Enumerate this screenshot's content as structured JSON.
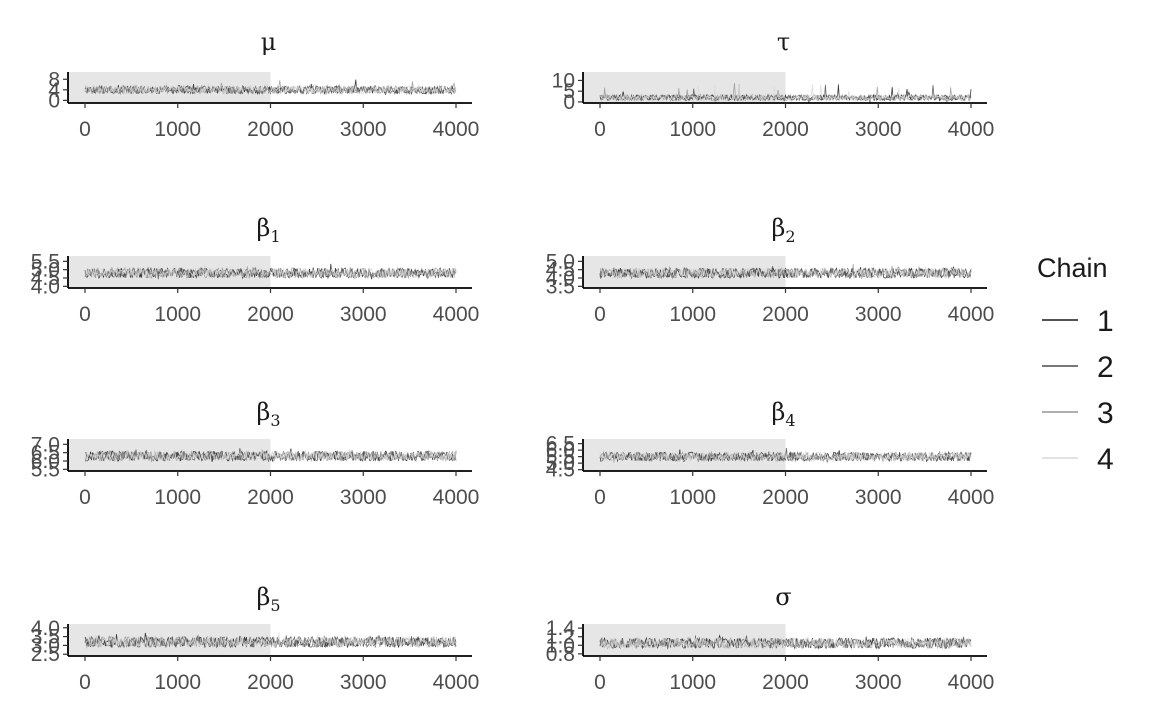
{
  "legend": {
    "title": "Chain",
    "items": [
      {
        "label": "1",
        "color": "#1a1a1a"
      },
      {
        "label": "2",
        "color": "#4d4d4d"
      },
      {
        "label": "3",
        "color": "#969696"
      },
      {
        "label": "4",
        "color": "#d9d9d9"
      }
    ]
  },
  "colors": {
    "warmup_shade": "#e6e6e6",
    "axis": "#000000",
    "background": "#ffffff"
  },
  "chart_data": [
    {
      "type": "line",
      "title": "μ",
      "xlabel": "",
      "ylabel": "",
      "xlim": [
        0,
        4000
      ],
      "ylim": [
        -1,
        10
      ],
      "warmup_end": 2000,
      "xticks": [
        0,
        1000,
        2000,
        3000,
        4000
      ],
      "yticks": [
        0,
        4,
        8
      ],
      "series_center": 4,
      "series_spread": 1.5,
      "spike_amp": 4,
      "series": [
        {
          "name": "1"
        },
        {
          "name": "2"
        },
        {
          "name": "3"
        },
        {
          "name": "4"
        }
      ]
    },
    {
      "type": "line",
      "title": "τ",
      "xlabel": "",
      "ylabel": "",
      "xlim": [
        0,
        4000
      ],
      "ylim": [
        -0.5,
        13
      ],
      "warmup_end": 2000,
      "xticks": [
        0,
        1000,
        2000,
        3000,
        4000
      ],
      "yticks": [
        0,
        5,
        10
      ],
      "series_center": 2,
      "series_spread": 1.3,
      "spike_amp": 9,
      "series": [
        {
          "name": "1"
        },
        {
          "name": "2"
        },
        {
          "name": "3"
        },
        {
          "name": "4"
        }
      ]
    },
    {
      "type": "line",
      "title": "β",
      "subscript": "1",
      "xlabel": "",
      "ylabel": "",
      "xlim": [
        0,
        4000
      ],
      "ylim": [
        3.9,
        5.7
      ],
      "warmup_end": 2000,
      "xticks": [
        0,
        1000,
        2000,
        3000,
        4000
      ],
      "yticks": [
        4.0,
        4.5,
        5.0,
        5.5
      ],
      "series_center": 4.8,
      "series_spread": 0.3,
      "spike_amp": 0.4,
      "series": [
        {
          "name": "1"
        },
        {
          "name": "2"
        },
        {
          "name": "3"
        },
        {
          "name": "4"
        }
      ]
    },
    {
      "type": "line",
      "title": "β",
      "subscript": "2",
      "xlabel": "",
      "ylabel": "",
      "xlim": [
        0,
        4000
      ],
      "ylim": [
        3.4,
        5.2
      ],
      "warmup_end": 2000,
      "xticks": [
        0,
        1000,
        2000,
        3000,
        4000
      ],
      "yticks": [
        3.5,
        4.0,
        4.5,
        5.0
      ],
      "series_center": 4.3,
      "series_spread": 0.3,
      "spike_amp": 0.4,
      "series": [
        {
          "name": "1"
        },
        {
          "name": "2"
        },
        {
          "name": "3"
        },
        {
          "name": "4"
        }
      ]
    },
    {
      "type": "line",
      "title": "β",
      "subscript": "3",
      "xlabel": "",
      "ylabel": "",
      "xlim": [
        0,
        4000
      ],
      "ylim": [
        5.4,
        7.2
      ],
      "warmup_end": 2000,
      "xticks": [
        0,
        1000,
        2000,
        3000,
        4000
      ],
      "yticks": [
        5.5,
        6.0,
        6.5,
        7.0
      ],
      "series_center": 6.3,
      "series_spread": 0.3,
      "spike_amp": 0.4,
      "series": [
        {
          "name": "1"
        },
        {
          "name": "2"
        },
        {
          "name": "3"
        },
        {
          "name": "4"
        }
      ]
    },
    {
      "type": "line",
      "title": "β",
      "subscript": "4",
      "xlabel": "",
      "ylabel": "",
      "xlim": [
        0,
        4000
      ],
      "ylim": [
        4.4,
        6.7
      ],
      "warmup_end": 2000,
      "xticks": [
        0,
        1000,
        2000,
        3000,
        4000
      ],
      "yticks": [
        4.5,
        5.0,
        5.5,
        6.0,
        6.5
      ],
      "series_center": 5.5,
      "series_spread": 0.35,
      "spike_amp": 0.5,
      "series": [
        {
          "name": "1"
        },
        {
          "name": "2"
        },
        {
          "name": "3"
        },
        {
          "name": "4"
        }
      ]
    },
    {
      "type": "line",
      "title": "β",
      "subscript": "5",
      "xlabel": "",
      "ylabel": "",
      "xlim": [
        0,
        4000
      ],
      "ylim": [
        2.4,
        4.1
      ],
      "warmup_end": 2000,
      "xticks": [
        0,
        1000,
        2000,
        3000,
        4000
      ],
      "yticks": [
        2.5,
        3.0,
        3.5,
        4.0
      ],
      "series_center": 3.2,
      "series_spread": 0.3,
      "spike_amp": 0.4,
      "series": [
        {
          "name": "1"
        },
        {
          "name": "2"
        },
        {
          "name": "3"
        },
        {
          "name": "4"
        }
      ]
    },
    {
      "type": "line",
      "title": "σ",
      "xlabel": "",
      "ylabel": "",
      "xlim": [
        0,
        4000
      ],
      "ylim": [
        0.75,
        1.45
      ],
      "warmup_end": 2000,
      "xticks": [
        0,
        1000,
        2000,
        3000,
        4000
      ],
      "yticks": [
        0.8,
        1.0,
        1.2,
        1.4
      ],
      "series_center": 1.05,
      "series_spread": 0.12,
      "spike_amp": 0.15,
      "series": [
        {
          "name": "1"
        },
        {
          "name": "2"
        },
        {
          "name": "3"
        },
        {
          "name": "4"
        }
      ]
    }
  ]
}
